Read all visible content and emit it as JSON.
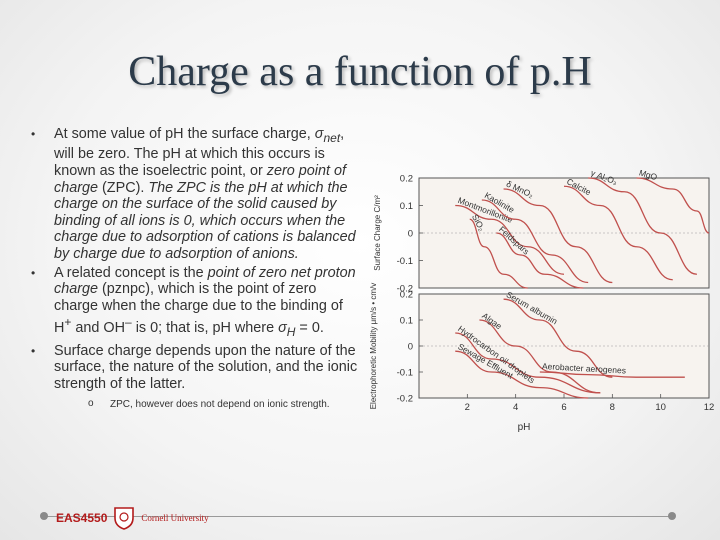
{
  "slide": {
    "title": "Charge as a function of p.H",
    "bullets": [
      {
        "text_html": "At some value of pH the surface charge, <i>σ</i><sub><i>net</i></sub>, will be zero. The pH at which this occurs is known as the isoelectric point, or <i>zero point of charge</i> (ZPC). <i>The ZPC is the pH at which the charge on the surface of the solid caused by binding of all ions is 0, which occurs when the charge due to adsorption of cations is balanced by charge due to adsorption of anions.</i>"
      },
      {
        "text_html": "A related concept is the <i>point of zero net proton charge</i> (pznpc), which is the point of zero charge when the charge due to the binding of H<sup>+</sup> and OH<sup>–</sup> is 0; that is, pH where <i>σ<sub>H</sub></i> = 0."
      },
      {
        "text_html": "Surface charge depends upon the nature of the surface, the nature of the solution, and the ionic strength of the latter."
      }
    ],
    "sub_bullet": "ZPC, however does not depend on ionic strength.",
    "footer": {
      "course": "EAS4550",
      "university": "Cornell University"
    }
  },
  "chart_data": [
    {
      "type": "line",
      "ylabel": "Surface Charge C/m²",
      "yticks": [
        "0.2",
        "0.1",
        "0",
        "-0.1",
        "-0.2"
      ],
      "ylim": [
        -0.2,
        0.2
      ],
      "xlim": [
        0,
        12
      ],
      "series": [
        {
          "name": "Montmorillonite",
          "x": [
            1.5,
            3,
            4.5,
            6
          ],
          "y": [
            0.1,
            0.05,
            -0.05,
            -0.15
          ]
        },
        {
          "name": "Kaolinite",
          "x": [
            2.6,
            4,
            5.5,
            7
          ],
          "y": [
            0.12,
            0.05,
            -0.08,
            -0.18
          ]
        },
        {
          "name": "SiO₂",
          "x": [
            2.1,
            2.7,
            3.5,
            4.5
          ],
          "y": [
            0.05,
            -0.05,
            -0.15,
            -0.2
          ]
        },
        {
          "name": "Feldspars",
          "x": [
            3.2,
            4.2,
            5.2,
            6.8
          ],
          "y": [
            0.0,
            -0.08,
            -0.15,
            -0.2
          ]
        },
        {
          "name": "δ MnO₂",
          "x": [
            3.5,
            5,
            6.5,
            8
          ],
          "y": [
            0.16,
            0.1,
            -0.05,
            -0.18
          ]
        },
        {
          "name": "Calcite",
          "x": [
            6,
            7.5,
            9,
            10.5
          ],
          "y": [
            0.17,
            0.1,
            -0.05,
            -0.17
          ]
        },
        {
          "name": "γ Al₂O₃",
          "x": [
            7,
            8.5,
            10,
            11.5
          ],
          "y": [
            0.2,
            0.15,
            0.0,
            -0.15
          ]
        },
        {
          "name": "MgO",
          "x": [
            9,
            10.5,
            11.5,
            12
          ],
          "y": [
            0.2,
            0.16,
            0.08,
            0.0
          ]
        }
      ]
    },
    {
      "type": "line",
      "ylabel": "Electrophoretic Mobility μm/s • cm/v",
      "xlabel": "pH",
      "xticks": [
        "2",
        "4",
        "6",
        "8",
        "10",
        "12"
      ],
      "yticks": [
        "0.2",
        "0.1",
        "0",
        "-0.1",
        "-0.2"
      ],
      "ylim": [
        -0.2,
        0.2
      ],
      "xlim": [
        0,
        12
      ],
      "series": [
        {
          "name": "Serum albumin",
          "x": [
            3.5,
            5,
            6.5,
            8
          ],
          "y": [
            0.18,
            0.1,
            -0.02,
            -0.12
          ]
        },
        {
          "name": "Algae",
          "x": [
            2.5,
            4,
            5.5,
            7.5
          ],
          "y": [
            0.1,
            0.0,
            -0.1,
            -0.18
          ]
        },
        {
          "name": "Hydrocarbon oil droplets",
          "x": [
            1.5,
            3,
            5,
            7.5
          ],
          "y": [
            0.05,
            -0.05,
            -0.12,
            -0.18
          ]
        },
        {
          "name": "Sewage Effluent",
          "x": [
            1.5,
            3,
            5,
            7
          ],
          "y": [
            -0.02,
            -0.1,
            -0.16,
            -0.2
          ]
        },
        {
          "name": "Aerobacter aerogenes",
          "x": [
            5,
            7,
            9,
            11
          ],
          "y": [
            -0.1,
            -0.11,
            -0.12,
            -0.12
          ]
        }
      ]
    }
  ]
}
